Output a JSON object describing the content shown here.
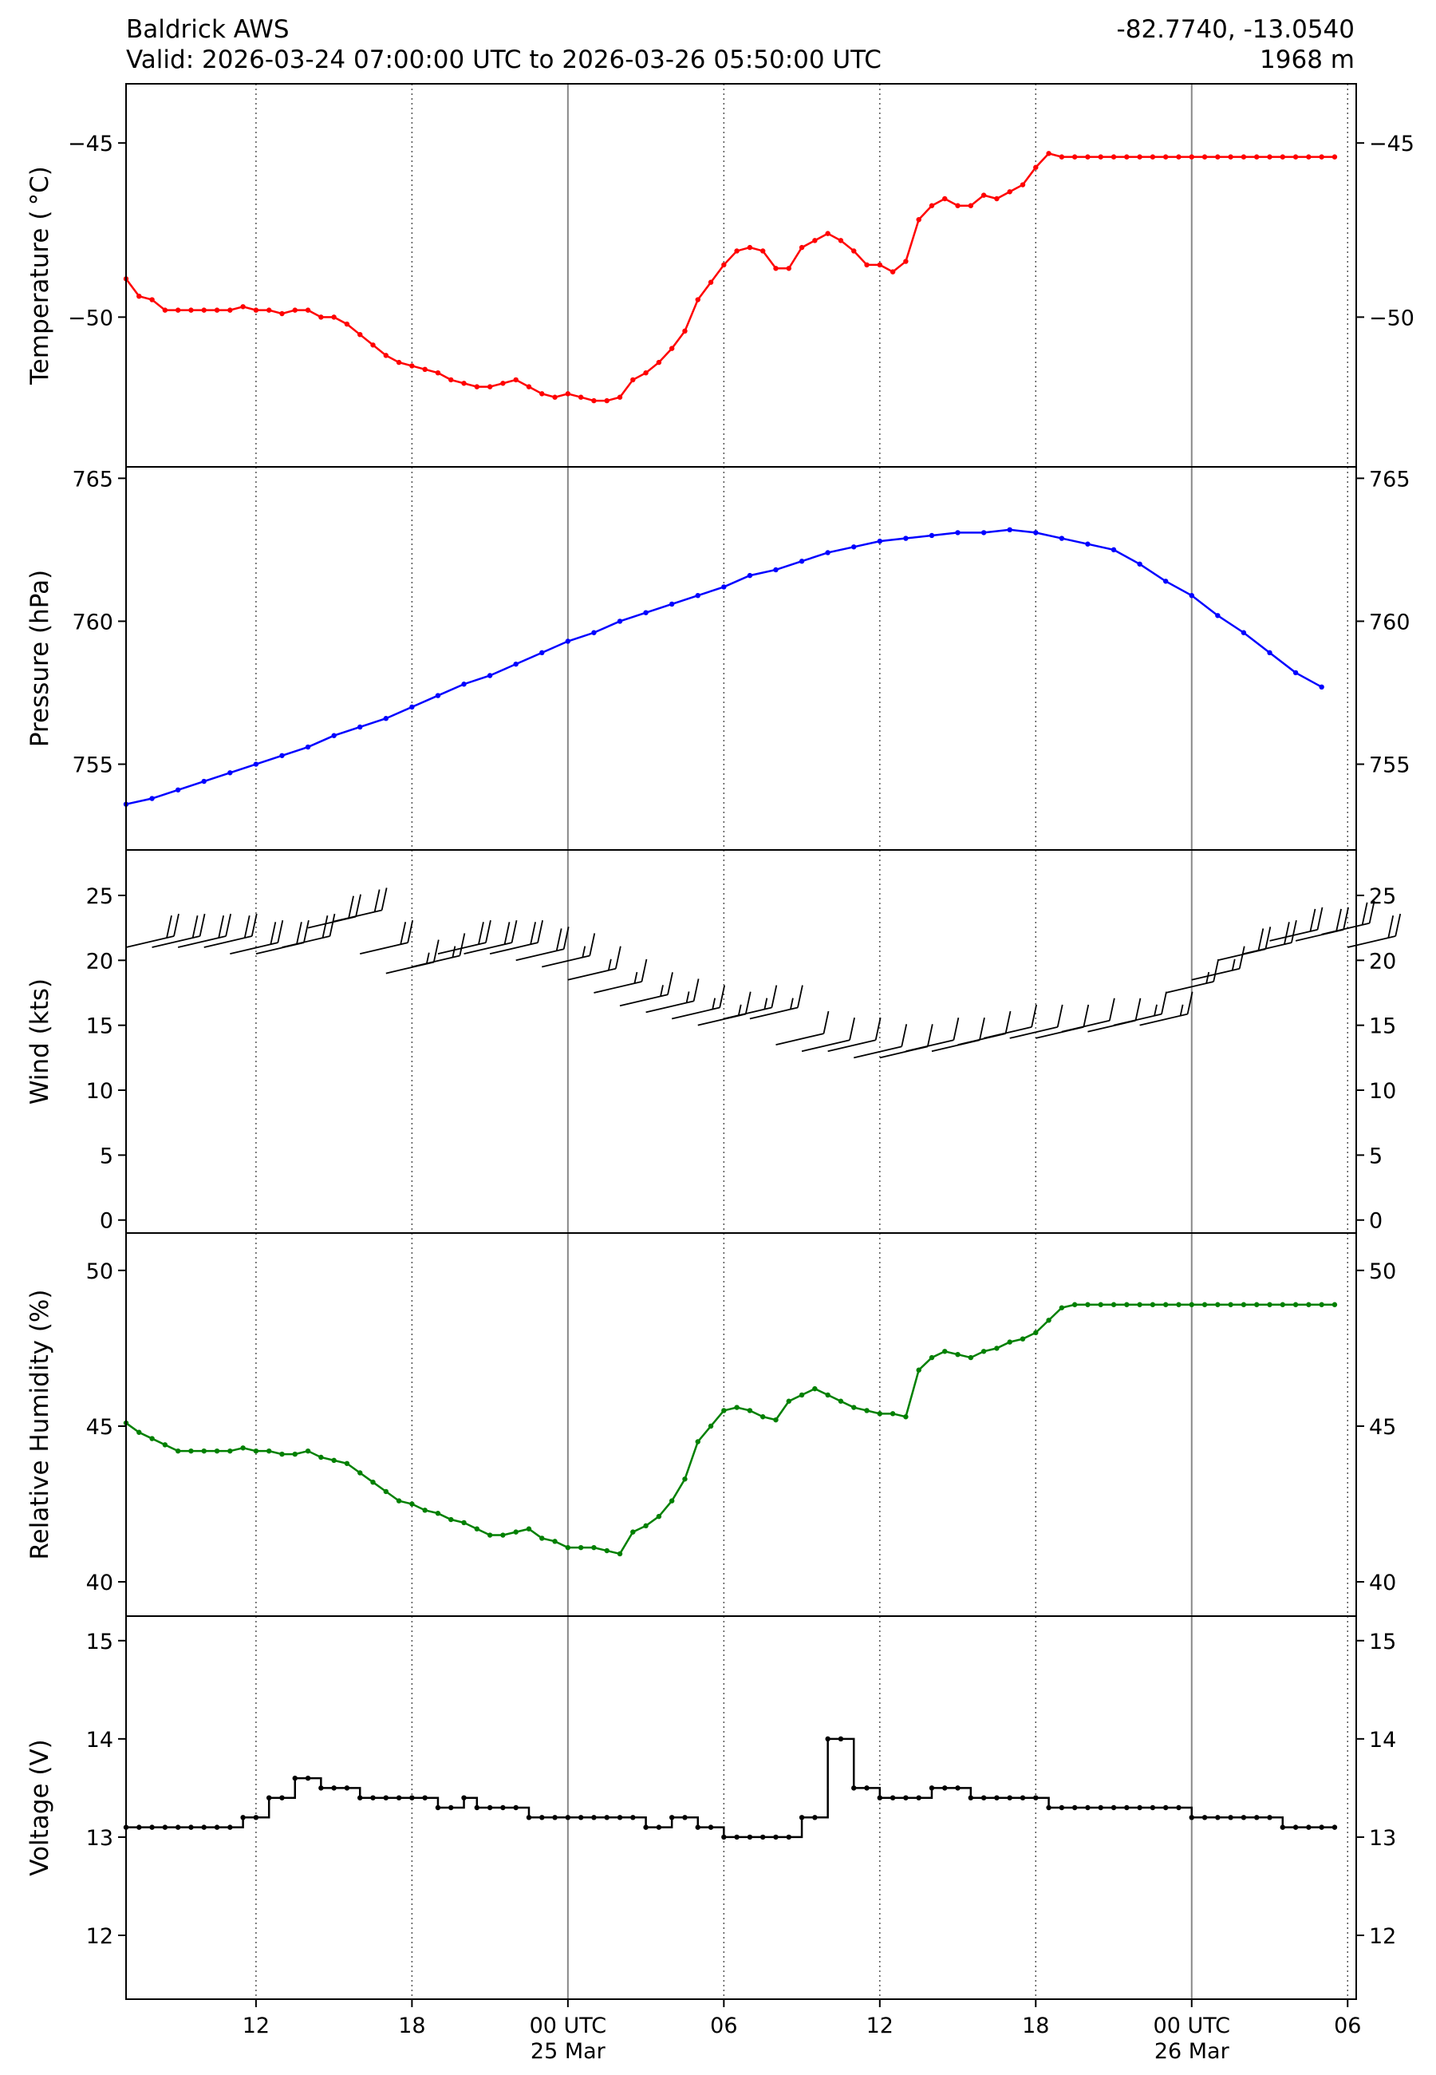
{
  "header": {
    "station": "Baldrick AWS",
    "valid": "Valid: 2026-03-24 07:00:00 UTC to 2026-03-26 05:50:00 UTC",
    "coords": "-82.7740, -13.0540",
    "elevation": "1968 m"
  },
  "chart_data": [
    {
      "type": "line",
      "ylabel": "Temperature ($^\\circ$C)",
      "ylabel_display": "Temperature ( °C)",
      "color": "#ff0000",
      "ylim": [
        -54.3,
        -43.3
      ],
      "yticks": [
        -45,
        -50
      ],
      "series": [
        {
          "x": [
            7.0,
            7.5,
            8.0,
            8.5,
            9.0,
            9.5,
            10.0,
            10.5,
            11.0,
            11.5,
            12.0,
            12.5,
            13.0,
            13.5,
            14.0,
            14.5,
            15.0,
            15.5,
            16.0,
            16.5,
            17.0,
            17.5,
            18.0,
            18.5,
            19.0,
            19.5,
            20.0,
            20.5,
            21.0,
            21.5,
            22.0,
            22.5,
            23.0,
            23.5,
            24.0,
            24.5,
            25.0,
            25.5,
            26.0,
            26.5,
            27.0,
            27.5,
            28.0,
            28.5,
            29.0,
            29.5,
            30.0,
            30.5,
            31.0,
            31.5,
            32.0,
            32.5,
            33.0,
            33.5,
            34.0,
            34.5,
            35.0,
            35.5,
            36.0,
            36.5,
            37.0,
            37.5,
            38.0,
            38.5,
            39.0,
            39.5,
            40.0,
            40.5,
            41.0,
            41.5,
            42.0,
            42.5,
            43.0,
            43.5,
            44.0,
            44.5,
            45.0,
            45.5,
            46.0,
            46.5,
            47.0,
            47.5,
            48.0,
            48.5,
            49.0,
            49.5,
            50.0,
            50.5,
            51.0,
            51.5,
            52.0,
            52.5,
            53.0,
            53.5
          ],
          "y": [
            -48.9,
            -49.4,
            -49.5,
            -49.8,
            -49.8,
            -49.8,
            -49.8,
            -49.8,
            -49.8,
            -49.7,
            -49.8,
            -49.8,
            -49.9,
            -49.8,
            -49.8,
            -50.0,
            -50.0,
            -50.2,
            -50.5,
            -50.8,
            -51.1,
            -51.3,
            -51.4,
            -51.5,
            -51.6,
            -51.8,
            -51.9,
            -52.0,
            -52.0,
            -51.9,
            -51.8,
            -52.0,
            -52.2,
            -52.3,
            -52.2,
            -52.3,
            -52.4,
            -52.4,
            -52.3,
            -51.8,
            -51.6,
            -51.3,
            -50.9,
            -50.4,
            -49.5,
            -49.0,
            -48.5,
            -48.1,
            -48.0,
            -48.1,
            -48.6,
            -48.6,
            -48.0,
            -47.8,
            -47.6,
            -47.8,
            -48.1,
            -48.5,
            -48.5,
            -48.7,
            -48.4,
            -47.2,
            -46.8,
            -46.6,
            -46.8,
            -46.8,
            -46.5,
            -46.6,
            -46.4,
            -46.2,
            -45.7,
            -45.3,
            -45.4,
            -45.4,
            -45.4,
            -45.4,
            -45.4,
            -45.4,
            -45.4,
            -45.4,
            -45.4,
            -45.4,
            -45.4,
            -45.4,
            -45.4,
            -45.4,
            -45.4,
            -45.4,
            -45.4,
            -45.4,
            -45.4,
            -45.4,
            -45.4,
            -45.4
          ]
        }
      ]
    },
    {
      "type": "line",
      "ylabel": "Pressure (hPa)",
      "color": "#0000ff",
      "ylim": [
        752.0,
        765.4
      ],
      "yticks": [
        765,
        760,
        755
      ],
      "series": [
        {
          "x": [
            7.0,
            8.0,
            9.0,
            10.0,
            11.0,
            12.0,
            13.0,
            14.0,
            15.0,
            16.0,
            17.0,
            18.0,
            19.0,
            20.0,
            21.0,
            22.0,
            23.0,
            24.0,
            25.0,
            26.0,
            27.0,
            28.0,
            29.0,
            30.0,
            31.0,
            32.0,
            33.0,
            34.0,
            35.0,
            36.0,
            37.0,
            38.0,
            39.0,
            40.0,
            41.0,
            42.0,
            43.0,
            44.0,
            45.0,
            46.0,
            47.0,
            48.0,
            49.0,
            50.0,
            51.0,
            52.0,
            53.0
          ],
          "y": [
            753.6,
            753.8,
            754.1,
            754.4,
            754.7,
            755.0,
            755.3,
            755.6,
            756.0,
            756.3,
            756.6,
            757.0,
            757.4,
            757.8,
            758.1,
            758.5,
            758.9,
            759.3,
            759.6,
            760.0,
            760.3,
            760.6,
            760.9,
            761.2,
            761.6,
            761.8,
            762.1,
            762.4,
            762.6,
            762.8,
            762.9,
            763.0,
            763.1,
            763.1,
            763.2,
            763.1,
            762.9,
            762.7,
            762.5,
            762.0,
            761.4,
            760.9,
            760.2,
            759.6,
            758.9,
            758.2,
            757.7
          ]
        }
      ]
    },
    {
      "type": "scatter",
      "mark": "wind barbs",
      "ylabel": "Wind (kts)",
      "color": "#000000",
      "ylim": [
        -1.0,
        28.5
      ],
      "yticks": [
        25,
        20,
        15,
        10,
        5,
        0
      ],
      "series": [
        {
          "x": [
            7.0,
            8.0,
            9.0,
            10.0,
            11.0,
            12.0,
            13.0,
            14.0,
            15.0,
            16.0,
            17.0,
            18.0,
            19.0,
            20.0,
            21.0,
            22.0,
            23.0,
            24.0,
            25.0,
            26.0,
            27.0,
            28.0,
            29.0,
            30.0,
            31.0,
            32.0,
            33.0,
            34.0,
            35.0,
            36.0,
            37.0,
            38.0,
            39.0,
            40.0,
            41.0,
            42.0,
            43.0,
            44.0,
            45.0,
            46.0,
            47.0,
            48.0,
            49.0,
            50.0,
            51.0,
            52.0,
            53.0,
            54.0
          ],
          "y": [
            21.0,
            21.0,
            21.0,
            21.0,
            20.5,
            20.5,
            21.0,
            22.5,
            23.0,
            20.5,
            19.0,
            19.5,
            20.5,
            20.5,
            20.5,
            20.0,
            19.5,
            18.5,
            17.5,
            16.5,
            16.0,
            15.5,
            15.0,
            15.5,
            15.5,
            13.5,
            13.0,
            13.0,
            12.5,
            12.5,
            13.0,
            13.0,
            13.5,
            14.0,
            14.0,
            14.0,
            14.5,
            14.5,
            15.0,
            15.0,
            17.5,
            18.5,
            20.0,
            20.5,
            21.5,
            21.5,
            22.0,
            21.0
          ]
        }
      ]
    },
    {
      "type": "line",
      "ylabel": "Relative Humidity (%)",
      "color": "#008000",
      "ylim": [
        38.9,
        51.2
      ],
      "yticks": [
        50,
        45,
        40
      ],
      "series": [
        {
          "x": [
            7.0,
            7.5,
            8.0,
            8.5,
            9.0,
            9.5,
            10.0,
            10.5,
            11.0,
            11.5,
            12.0,
            12.5,
            13.0,
            13.5,
            14.0,
            14.5,
            15.0,
            15.5,
            16.0,
            16.5,
            17.0,
            17.5,
            18.0,
            18.5,
            19.0,
            19.5,
            20.0,
            20.5,
            21.0,
            21.5,
            22.0,
            22.5,
            23.0,
            23.5,
            24.0,
            24.5,
            25.0,
            25.5,
            26.0,
            26.5,
            27.0,
            27.5,
            28.0,
            28.5,
            29.0,
            29.5,
            30.0,
            30.5,
            31.0,
            31.5,
            32.0,
            32.5,
            33.0,
            33.5,
            34.0,
            34.5,
            35.0,
            35.5,
            36.0,
            36.5,
            37.0,
            37.5,
            38.0,
            38.5,
            39.0,
            39.5,
            40.0,
            40.5,
            41.0,
            41.5,
            42.0,
            42.5,
            43.0,
            43.5,
            44.0,
            44.5,
            45.0,
            45.5,
            46.0,
            46.5,
            47.0,
            47.5,
            48.0,
            48.5,
            49.0,
            49.5,
            50.0,
            50.5,
            51.0,
            51.5,
            52.0,
            52.5,
            53.0,
            53.5
          ],
          "y": [
            45.1,
            44.8,
            44.6,
            44.4,
            44.2,
            44.2,
            44.2,
            44.2,
            44.2,
            44.3,
            44.2,
            44.2,
            44.1,
            44.1,
            44.2,
            44.0,
            43.9,
            43.8,
            43.5,
            43.2,
            42.9,
            42.6,
            42.5,
            42.3,
            42.2,
            42.0,
            41.9,
            41.7,
            41.5,
            41.5,
            41.6,
            41.7,
            41.4,
            41.3,
            41.1,
            41.1,
            41.1,
            41.0,
            40.9,
            41.6,
            41.8,
            42.1,
            42.6,
            43.3,
            44.5,
            45.0,
            45.5,
            45.6,
            45.5,
            45.3,
            45.2,
            45.8,
            46.0,
            46.2,
            46.0,
            45.8,
            45.6,
            45.5,
            45.4,
            45.4,
            45.3,
            46.8,
            47.2,
            47.4,
            47.3,
            47.2,
            47.4,
            47.5,
            47.7,
            47.8,
            48.0,
            48.4,
            48.8,
            48.9,
            48.9,
            48.9,
            48.9,
            48.9,
            48.9,
            48.9,
            48.9,
            48.9,
            48.9,
            48.9,
            48.9,
            48.9,
            48.9,
            48.9,
            48.9,
            48.9,
            48.9,
            48.9,
            48.9,
            48.9
          ]
        }
      ]
    },
    {
      "type": "line",
      "mark": "step",
      "ylabel": "Voltage (V)",
      "color": "#000000",
      "ylim": [
        11.35,
        15.25
      ],
      "yticks": [
        15,
        14,
        13,
        12
      ],
      "series": [
        {
          "x": [
            7.0,
            7.5,
            8.0,
            8.5,
            9.0,
            9.5,
            10.0,
            10.5,
            11.0,
            11.5,
            12.0,
            12.5,
            13.0,
            13.5,
            14.0,
            14.5,
            15.0,
            15.5,
            16.0,
            16.5,
            17.0,
            17.5,
            18.0,
            18.5,
            19.0,
            19.5,
            20.0,
            20.5,
            21.0,
            21.5,
            22.0,
            22.5,
            23.0,
            23.5,
            24.0,
            24.5,
            25.0,
            25.5,
            26.0,
            26.5,
            27.0,
            27.5,
            28.0,
            28.5,
            29.0,
            29.5,
            30.0,
            30.5,
            31.0,
            31.5,
            32.0,
            32.5,
            33.0,
            33.5,
            34.0,
            34.5,
            35.0,
            35.5,
            36.0,
            36.5,
            37.0,
            37.5,
            38.0,
            38.5,
            39.0,
            39.5,
            40.0,
            40.5,
            41.0,
            41.5,
            42.0,
            42.5,
            43.0,
            43.5,
            44.0,
            44.5,
            45.0,
            45.5,
            46.0,
            46.5,
            47.0,
            47.5,
            48.0,
            48.5,
            49.0,
            49.5,
            50.0,
            50.5,
            51.0,
            51.5,
            52.0,
            52.5,
            53.0,
            53.5
          ],
          "y": [
            13.1,
            13.1,
            13.1,
            13.1,
            13.1,
            13.1,
            13.1,
            13.1,
            13.1,
            13.2,
            13.2,
            13.4,
            13.4,
            13.6,
            13.6,
            13.5,
            13.5,
            13.5,
            13.4,
            13.4,
            13.4,
            13.4,
            13.4,
            13.4,
            13.3,
            13.3,
            13.4,
            13.3,
            13.3,
            13.3,
            13.3,
            13.2,
            13.2,
            13.2,
            13.2,
            13.2,
            13.2,
            13.2,
            13.2,
            13.2,
            13.1,
            13.1,
            13.2,
            13.2,
            13.1,
            13.1,
            13.0,
            13.0,
            13.0,
            13.0,
            13.0,
            13.0,
            13.2,
            13.2,
            14.0,
            14.0,
            13.5,
            13.5,
            13.4,
            13.4,
            13.4,
            13.4,
            13.5,
            13.5,
            13.5,
            13.4,
            13.4,
            13.4,
            13.4,
            13.4,
            13.4,
            13.3,
            13.3,
            13.3,
            13.3,
            13.3,
            13.3,
            13.3,
            13.3,
            13.3,
            13.3,
            13.3,
            13.2,
            13.2,
            13.2,
            13.2,
            13.2,
            13.2,
            13.2,
            13.1,
            13.1,
            13.1,
            13.1,
            13.1
          ]
        }
      ]
    }
  ],
  "xaxis": {
    "xlim": [
      7.0,
      54.33
    ],
    "ticks": [
      {
        "x": 12,
        "label": "12"
      },
      {
        "x": 18,
        "label": "18"
      },
      {
        "x": 24,
        "label": "00 UTC\n25 Mar",
        "line1": "00 UTC",
        "line2": "25 Mar"
      },
      {
        "x": 30,
        "label": "06"
      },
      {
        "x": 36,
        "label": "12"
      },
      {
        "x": 42,
        "label": "18"
      },
      {
        "x": 48,
        "label": "00 UTC\n26 Mar",
        "line1": "00 UTC",
        "line2": "26 Mar"
      },
      {
        "x": 54,
        "label": "06"
      }
    ],
    "day_boundaries": [
      24,
      48
    ]
  }
}
